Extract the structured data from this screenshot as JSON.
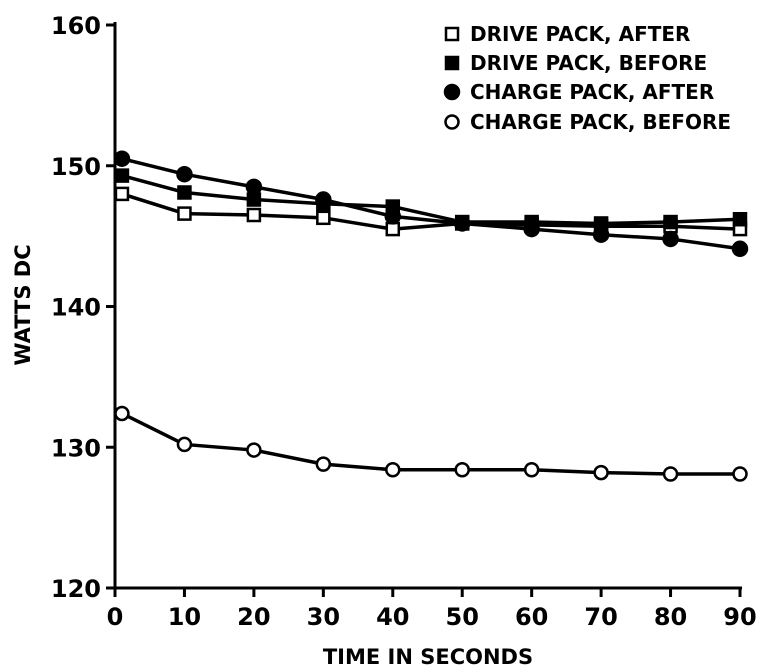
{
  "chart_data": {
    "type": "line",
    "title": "",
    "xlabel": "TIME IN SECONDS",
    "ylabel": "WATTS DC",
    "xlim": [
      0,
      90
    ],
    "ylim": [
      120,
      160
    ],
    "x_ticks": [
      "0",
      "10",
      "20",
      "30",
      "40",
      "50",
      "60",
      "70",
      "80",
      "90"
    ],
    "y_ticks": [
      "120",
      "130",
      "140",
      "150",
      "160"
    ],
    "grid": false,
    "legend_position": "top-right",
    "x": [
      1,
      10,
      20,
      30,
      40,
      50,
      60,
      70,
      80,
      90
    ],
    "series": [
      {
        "name": "DRIVE PACK, AFTER",
        "marker": "open-square",
        "values": [
          148.0,
          146.6,
          146.5,
          146.3,
          145.5,
          145.9,
          145.8,
          145.7,
          145.7,
          145.5
        ]
      },
      {
        "name": "DRIVE PACK, BEFORE",
        "marker": "filled-square",
        "values": [
          149.3,
          148.1,
          147.6,
          147.3,
          147.1,
          146.0,
          146.0,
          145.9,
          146.0,
          146.2
        ]
      },
      {
        "name": "CHARGE PACK, AFTER",
        "marker": "filled-circle",
        "values": [
          150.5,
          149.4,
          148.5,
          147.6,
          146.4,
          145.9,
          145.5,
          145.1,
          144.8,
          144.1
        ]
      },
      {
        "name": "CHARGE PACK, BEFORE",
        "marker": "open-circle",
        "values": [
          132.4,
          130.2,
          129.8,
          128.8,
          128.4,
          128.4,
          128.4,
          128.2,
          128.1,
          128.1
        ]
      }
    ]
  }
}
